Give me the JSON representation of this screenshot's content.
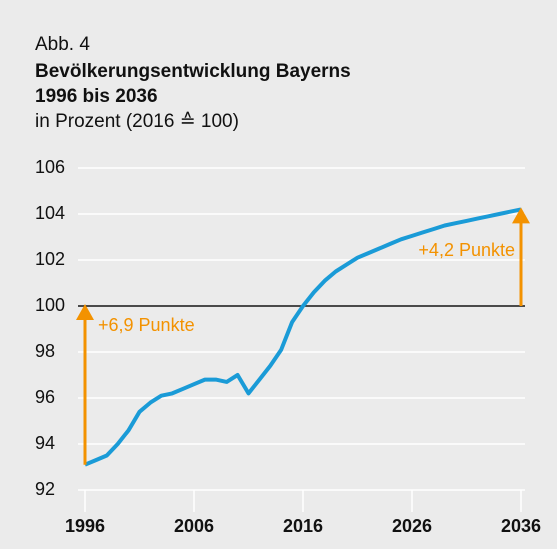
{
  "chart_data": {
    "type": "line",
    "label": "Abb. 4",
    "title": "Bevölkerungsentwicklung Bayerns",
    "title2": "1996 bis 2036",
    "subtitle": "in Prozent (2016 ≙ 100)",
    "x": [
      1996,
      1997,
      1998,
      1999,
      2000,
      2001,
      2002,
      2003,
      2004,
      2005,
      2006,
      2007,
      2008,
      2009,
      2010,
      2011,
      2012,
      2013,
      2014,
      2015,
      2016,
      2017,
      2018,
      2019,
      2020,
      2021,
      2022,
      2023,
      2024,
      2025,
      2026,
      2027,
      2028,
      2029,
      2030,
      2031,
      2032,
      2033,
      2034,
      2035,
      2036
    ],
    "series": [
      {
        "color": "#1a9bd7",
        "values": [
          93.1,
          93.3,
          93.5,
          94.0,
          94.6,
          95.4,
          95.8,
          96.1,
          96.2,
          96.4,
          96.6,
          96.8,
          96.8,
          96.7,
          97.0,
          96.2,
          96.8,
          97.4,
          98.1,
          99.3,
          100.0,
          100.6,
          101.1,
          101.5,
          101.8,
          102.1,
          102.3,
          102.5,
          102.7,
          102.9,
          103.05,
          103.2,
          103.35,
          103.5,
          103.6,
          103.7,
          103.8,
          103.9,
          104.0,
          104.1,
          104.2
        ]
      }
    ],
    "xlim": [
      1996,
      2036
    ],
    "xticks": [
      1996,
      2006,
      2016,
      2026,
      2036
    ],
    "ylim": [
      92,
      106
    ],
    "yticks": [
      92,
      94,
      96,
      98,
      100,
      102,
      104,
      106
    ],
    "grid": true,
    "reference_line": 100,
    "annotations": [
      {
        "text": "+6,9 Punkte",
        "color": "#f39200"
      },
      {
        "text": "+4,2 Punkte",
        "color": "#f39200"
      }
    ]
  }
}
